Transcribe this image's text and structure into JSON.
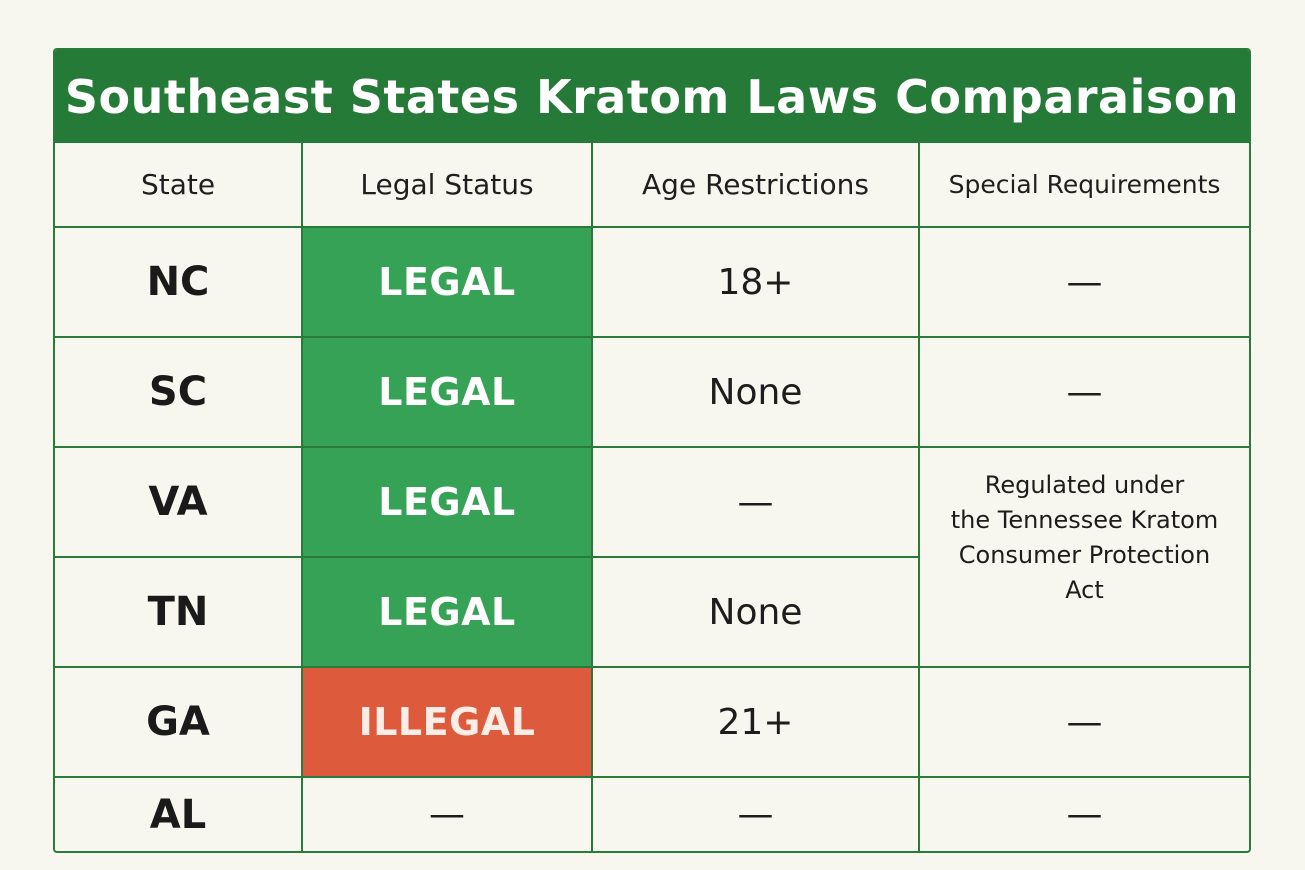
{
  "title": "Southeast States Kratom Laws Comparaison",
  "columns": [
    "State",
    "Legal Status",
    "Age Restrictions",
    "Special Requirements"
  ],
  "rows": [
    {
      "state": "NC",
      "status": "LEGAL",
      "age": "18+",
      "requirements": "—"
    },
    {
      "state": "SC",
      "status": "LEGAL",
      "age": "None",
      "requirements": "—"
    },
    {
      "state": "VA",
      "status": "LEGAL",
      "age": "—",
      "requirements": "Regulated under\nthe Tennessee Kratom\nConsumer Protection\nAct"
    },
    {
      "state": "TN",
      "status": "LEGAL",
      "age": "None",
      "requirements": ""
    },
    {
      "state": "GA",
      "status": "ILLEGAL",
      "age": "21+",
      "requirements": "—"
    },
    {
      "state": "AL",
      "status": "—",
      "age": "—",
      "requirements": "—"
    }
  ],
  "colors": {
    "header_green": "#267a38",
    "legal_green": "#36a256",
    "illegal_red": "#dd5a3c",
    "border_green": "#2a7a3c",
    "background": "#f7f6ef"
  }
}
